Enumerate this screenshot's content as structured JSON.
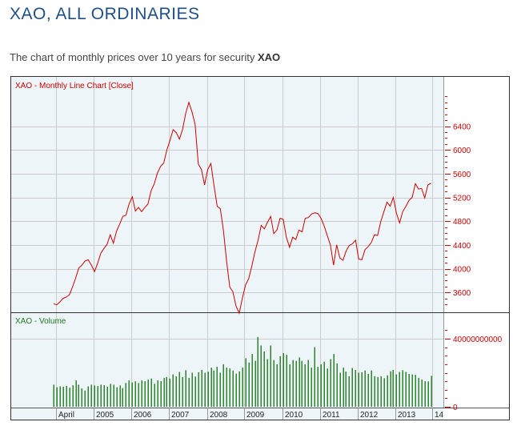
{
  "page": {
    "title": "XAO, ALL ORDINARIES",
    "subtitle_prefix": "The chart of monthly prices over 10 years for security",
    "subtitle_symbol": "XAO"
  },
  "colors": {
    "price_line": "#cc0000",
    "volume_bar": "#1f7a1f",
    "grid": "#cccccc",
    "panel_bg": "#eef5f8",
    "title_blue": "#1f4f86"
  },
  "chart_data": [
    {
      "type": "line",
      "title": "XAO - Monthly Line Chart [Close]",
      "ylabel": "",
      "ylim": [
        3200,
        7200
      ],
      "yticks": [
        3600,
        4000,
        4400,
        4800,
        5200,
        5600,
        6000,
        6400
      ],
      "x_start": 2004.28,
      "x_step_months": 1,
      "series": [
        {
          "name": "Close",
          "values": [
            3410,
            3390,
            3440,
            3500,
            3520,
            3560,
            3690,
            3840,
            4010,
            4060,
            4130,
            4150,
            4060,
            3950,
            4090,
            4260,
            4340,
            4410,
            4570,
            4430,
            4630,
            4750,
            4880,
            4900,
            5090,
            5210,
            4970,
            5030,
            4960,
            5030,
            5090,
            5310,
            5430,
            5610,
            5720,
            5780,
            6000,
            6160,
            6340,
            6290,
            6180,
            6340,
            6620,
            6800,
            6640,
            6430,
            5760,
            5670,
            5410,
            5670,
            5770,
            5400,
            5050,
            5010,
            4640,
            4130,
            3690,
            3610,
            3370,
            3250,
            3500,
            3720,
            3830,
            4040,
            4280,
            4480,
            4730,
            4670,
            4780,
            4880,
            4590,
            4650,
            4850,
            4830,
            4530,
            4360,
            4530,
            4490,
            4650,
            4620,
            4850,
            4860,
            4920,
            4940,
            4930,
            4850,
            4720,
            4560,
            4400,
            4060,
            4400,
            4180,
            4140,
            4300,
            4390,
            4420,
            4480,
            4160,
            4150,
            4320,
            4370,
            4440,
            4570,
            4560,
            4790,
            4960,
            5120,
            5050,
            5200,
            4930,
            4770,
            4960,
            5050,
            5150,
            5200,
            5430,
            5340,
            5350,
            5190,
            5410,
            5440
          ]
        }
      ],
      "tick_labels": [
        "April",
        "2005",
        "2006",
        "2007",
        "2008",
        "2009",
        "2010",
        "2011",
        "2012",
        "2013",
        "14"
      ]
    },
    {
      "type": "bar",
      "title": "XAO - Volume",
      "ylim": [
        0,
        50000000000
      ],
      "yticks_labels": [
        "0",
        "40000000000"
      ],
      "yticks": [
        0,
        40000000000
      ],
      "series": [
        {
          "name": "Volume",
          "values": [
            13000000000,
            11500000000,
            12000000000,
            11800000000,
            12300000000,
            11200000000,
            12600000000,
            15500000000,
            13000000000,
            10800000000,
            9500000000,
            12000000000,
            13000000000,
            12500000000,
            12200000000,
            13000000000,
            12700000000,
            11800000000,
            13500000000,
            13000000000,
            11500000000,
            12500000000,
            11000000000,
            14000000000,
            15500000000,
            14300000000,
            15000000000,
            14000000000,
            15500000000,
            15000000000,
            16000000000,
            16600000000,
            13500000000,
            15500000000,
            15000000000,
            17000000000,
            17500000000,
            16600000000,
            19000000000,
            18000000000,
            20500000000,
            17500000000,
            21500000000,
            17000000000,
            20000000000,
            17800000000,
            20300000000,
            21700000000,
            20000000000,
            20600000000,
            23000000000,
            21300000000,
            23500000000,
            20000000000,
            25000000000,
            23000000000,
            22500000000,
            21300000000,
            19500000000,
            20800000000,
            23000000000,
            28500000000,
            26000000000,
            31000000000,
            27000000000,
            41000000000,
            36000000000,
            32500000000,
            28000000000,
            36000000000,
            27500000000,
            25000000000,
            29700000000,
            31500000000,
            30500000000,
            25000000000,
            27500000000,
            27000000000,
            29000000000,
            27000000000,
            25000000000,
            27500000000,
            23000000000,
            35000000000,
            23500000000,
            25000000000,
            26500000000,
            22500000000,
            28000000000,
            31000000000,
            25500000000,
            20000000000,
            23000000000,
            20700000000,
            18000000000,
            22800000000,
            21600000000,
            20000000000,
            20300000000,
            21300000000,
            19300000000,
            21300000000,
            18000000000,
            17500000000,
            18000000000,
            16800000000,
            18500000000,
            20800000000,
            21700000000,
            19000000000,
            20500000000,
            21500000000,
            20500000000,
            19300000000,
            19000000000,
            18800000000,
            17000000000,
            16000000000,
            15000000000,
            14900000000,
            18200000000
          ]
        }
      ]
    }
  ]
}
